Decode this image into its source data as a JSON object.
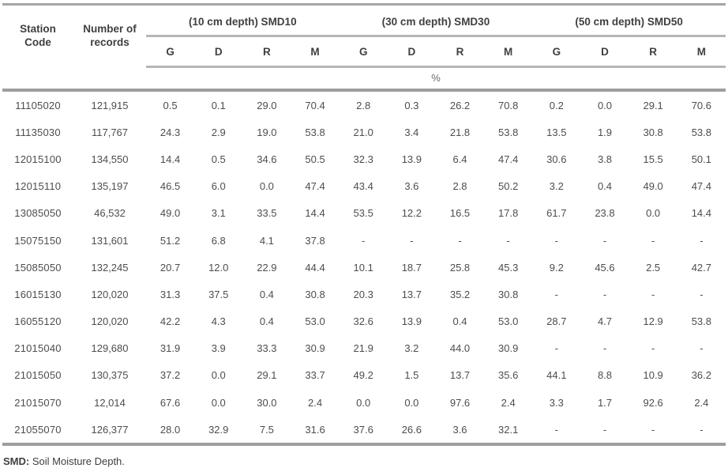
{
  "table": {
    "col_headers": {
      "station": "Station\nCode",
      "records": "Number of\nrecords"
    },
    "groups": [
      {
        "label": "(10 cm depth) SMD10",
        "subcols": [
          "G",
          "D",
          "R",
          "M"
        ]
      },
      {
        "label": "(30 cm depth) SMD30",
        "subcols": [
          "G",
          "D",
          "R",
          "M"
        ]
      },
      {
        "label": "(50 cm depth) SMD50",
        "subcols": [
          "G",
          "D",
          "R",
          "M"
        ]
      }
    ],
    "unit_label": "%",
    "rows": [
      {
        "station": "11105020",
        "records": "121,915",
        "values": [
          "0.5",
          "0.1",
          "29.0",
          "70.4",
          "2.8",
          "0.3",
          "26.2",
          "70.8",
          "0.2",
          "0.0",
          "29.1",
          "70.6"
        ]
      },
      {
        "station": "11135030",
        "records": "117,767",
        "values": [
          "24.3",
          "2.9",
          "19.0",
          "53.8",
          "21.0",
          "3.4",
          "21.8",
          "53.8",
          "13.5",
          "1.9",
          "30.8",
          "53.8"
        ]
      },
      {
        "station": "12015100",
        "records": "134,550",
        "values": [
          "14.4",
          "0.5",
          "34.6",
          "50.5",
          "32.3",
          "13.9",
          "6.4",
          "47.4",
          "30.6",
          "3.8",
          "15.5",
          "50.1"
        ]
      },
      {
        "station": "12015110",
        "records": "135,197",
        "values": [
          "46.5",
          "6.0",
          "0.0",
          "47.4",
          "43.4",
          "3.6",
          "2.8",
          "50.2",
          "3.2",
          "0.4",
          "49.0",
          "47.4"
        ]
      },
      {
        "station": "13085050",
        "records": "46,532",
        "values": [
          "49.0",
          "3.1",
          "33.5",
          "14.4",
          "53.5",
          "12.2",
          "16.5",
          "17.8",
          "61.7",
          "23.8",
          "0.0",
          "14.4"
        ]
      },
      {
        "station": "15075150",
        "records": "131,601",
        "values": [
          "51.2",
          "6.8",
          "4.1",
          "37.8",
          "-",
          "-",
          "-",
          "-",
          "-",
          "-",
          "-",
          "-"
        ]
      },
      {
        "station": "15085050",
        "records": "132,245",
        "values": [
          "20.7",
          "12.0",
          "22.9",
          "44.4",
          "10.1",
          "18.7",
          "25.8",
          "45.3",
          "9.2",
          "45.6",
          "2.5",
          "42.7"
        ]
      },
      {
        "station": "16015130",
        "records": "120,020",
        "values": [
          "31.3",
          "37.5",
          "0.4",
          "30.8",
          "20.3",
          "13.7",
          "35.2",
          "30.8",
          "-",
          "-",
          "-",
          "-"
        ]
      },
      {
        "station": "16055120",
        "records": "120,020",
        "values": [
          "42.2",
          "4.3",
          "0.4",
          "53.0",
          "32.6",
          "13.9",
          "0.4",
          "53.0",
          "28.7",
          "4.7",
          "12.9",
          "53.8"
        ]
      },
      {
        "station": "21015040",
        "records": "129,680",
        "values": [
          "31.9",
          "3.9",
          "33.3",
          "30.9",
          "21.9",
          "3.2",
          "44.0",
          "30.9",
          "-",
          "-",
          "-",
          "-"
        ]
      },
      {
        "station": "21015050",
        "records": "130,375",
        "values": [
          "37.2",
          "0.0",
          "29.1",
          "33.7",
          "49.2",
          "1.5",
          "13.7",
          "35.6",
          "44.1",
          "8.8",
          "10.9",
          "36.2"
        ]
      },
      {
        "station": "21015070",
        "records": "12,014",
        "values": [
          "67.6",
          "0.0",
          "30.0",
          "2.4",
          "0.0",
          "0.0",
          "97.6",
          "2.4",
          "3.3",
          "1.7",
          "92.6",
          "2.4"
        ]
      },
      {
        "station": "21055070",
        "records": "126,377",
        "values": [
          "28.0",
          "32.9",
          "7.5",
          "31.6",
          "37.6",
          "26.6",
          "3.6",
          "32.1",
          "-",
          "-",
          "-",
          "-"
        ]
      }
    ]
  },
  "footnote": {
    "abbr": "SMD:",
    "text": "Soil Moisture Depth."
  },
  "colors": {
    "text": "#4d4d4d",
    "header_text": "#3f3f3f",
    "rule_light": "#b6b6b6",
    "rule_dark": "#9e9e9e",
    "background": "#ffffff"
  }
}
